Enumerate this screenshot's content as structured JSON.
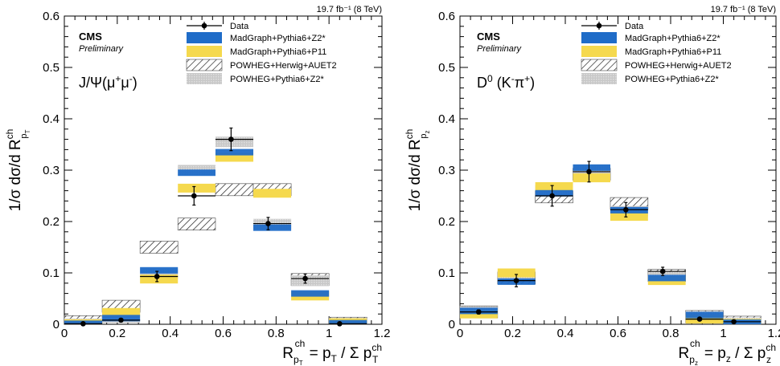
{
  "chart_data": [
    {
      "type": "bar",
      "lumi_label": "19.7 fb⁻¹ (8 TeV)",
      "experiment": "CMS",
      "status": "Preliminary",
      "channel_label": "J/Ψ(μ⁺μ⁻)",
      "ylabel": "1/σ dσ/d R^ch_pT",
      "xlabel": "R_pT^ch = p_T / Σ p_T^ch",
      "xlim": [
        0,
        1.2
      ],
      "ylim": [
        0,
        0.6
      ],
      "x_ticks": [
        "0",
        "0.2",
        "0.4",
        "0.6",
        "0.8",
        "1",
        "1.2"
      ],
      "y_ticks": [
        "0",
        "0.1",
        "0.2",
        "0.3",
        "0.4",
        "0.5",
        "0.6"
      ],
      "bin_edges": [
        0,
        0.143,
        0.286,
        0.429,
        0.571,
        0.714,
        0.857,
        1.0,
        1.143
      ],
      "data": {
        "name": "Data",
        "x": [
          0.071,
          0.214,
          0.35,
          0.49,
          0.63,
          0.77,
          0.91,
          1.04
        ],
        "values": [
          0.001,
          0.008,
          0.093,
          0.25,
          0.36,
          0.196,
          0.089,
          0.001
        ],
        "errors": [
          0.001,
          0.003,
          0.01,
          0.018,
          0.022,
          0.012,
          0.009,
          0.001
        ]
      },
      "series": [
        {
          "name": "MadGraph+Pythia6+Z2*",
          "values": [
            0.001,
            0.012,
            0.105,
            0.295,
            0.335,
            0.188,
            0.06,
            0.002
          ]
        },
        {
          "name": "MadGraph+Pythia6+P11",
          "values": [
            0.001,
            0.023,
            0.088,
            0.265,
            0.325,
            0.255,
            0.055,
            0.003
          ]
        },
        {
          "name": "POWHEG+Herwig+AUET2",
          "values": [
            0.005,
            0.035,
            0.15,
            0.195,
            0.262,
            0.262,
            0.087,
            0.002
          ]
        },
        {
          "name": "POWHEG+Pythia6+Z2*",
          "values": [
            0.001,
            0.013,
            0.098,
            0.3,
            0.355,
            0.195,
            0.085,
            0.002
          ]
        }
      ],
      "series_colors": {
        "Data": "#000000",
        "MadGraph+Pythia6+Z2*": "#1f6cc8",
        "MadGraph+Pythia6+P11": "#f5d94e",
        "POWHEG+Herwig+AUET2": "#222222",
        "POWHEG+Pythia6+Z2*": "#bdbdbd"
      },
      "legend": "top-right"
    },
    {
      "type": "bar",
      "lumi_label": "19.7 fb⁻¹ (8 TeV)",
      "experiment": "CMS",
      "status": "Preliminary",
      "channel_label": "D⁰ (K⁻π⁺)",
      "ylabel": "1/σ dσ/d R^ch_pz",
      "xlabel": "R_pz^ch = p_z / Σ p_z^ch",
      "xlim": [
        0,
        1.2
      ],
      "ylim": [
        0,
        0.6
      ],
      "x_ticks": [
        "0",
        "0.2",
        "0.4",
        "0.6",
        "0.8",
        "1",
        "1.2"
      ],
      "y_ticks": [
        "0",
        "0.1",
        "0.2",
        "0.3",
        "0.4",
        "0.5",
        "0.6"
      ],
      "bin_edges": [
        0,
        0.143,
        0.286,
        0.429,
        0.571,
        0.714,
        0.857,
        1.0,
        1.143
      ],
      "data": {
        "name": "Data",
        "x": [
          0.071,
          0.214,
          0.35,
          0.49,
          0.63,
          0.77,
          0.91,
          1.04
        ],
        "values": [
          0.024,
          0.085,
          0.25,
          0.297,
          0.223,
          0.103,
          0.01,
          0.005
        ],
        "errors": [
          0.004,
          0.012,
          0.02,
          0.02,
          0.014,
          0.008,
          0.002,
          0.001
        ]
      },
      "series": [
        {
          "name": "MadGraph+Pythia6+Z2*",
          "values": [
            0.026,
            0.083,
            0.255,
            0.305,
            0.222,
            0.09,
            0.018,
            0.003
          ]
        },
        {
          "name": "MadGraph+Pythia6+P11",
          "values": [
            0.02,
            0.1,
            0.268,
            0.285,
            0.21,
            0.085,
            0.01,
            0.002
          ]
        },
        {
          "name": "POWHEG+Herwig+AUET2",
          "values": [
            0.024,
            0.09,
            0.248,
            0.292,
            0.235,
            0.095,
            0.015,
            0.004
          ]
        },
        {
          "name": "POWHEG+Pythia6+Z2*",
          "values": [
            0.025,
            0.095,
            0.26,
            0.3,
            0.22,
            0.092,
            0.015,
            0.003
          ]
        }
      ],
      "series_colors": {
        "Data": "#000000",
        "MadGraph+Pythia6+Z2*": "#1f6cc8",
        "MadGraph+Pythia6+P11": "#f5d94e",
        "POWHEG+Herwig+AUET2": "#222222",
        "POWHEG+Pythia6+Z2*": "#bdbdbd"
      },
      "legend": "top-right"
    }
  ]
}
